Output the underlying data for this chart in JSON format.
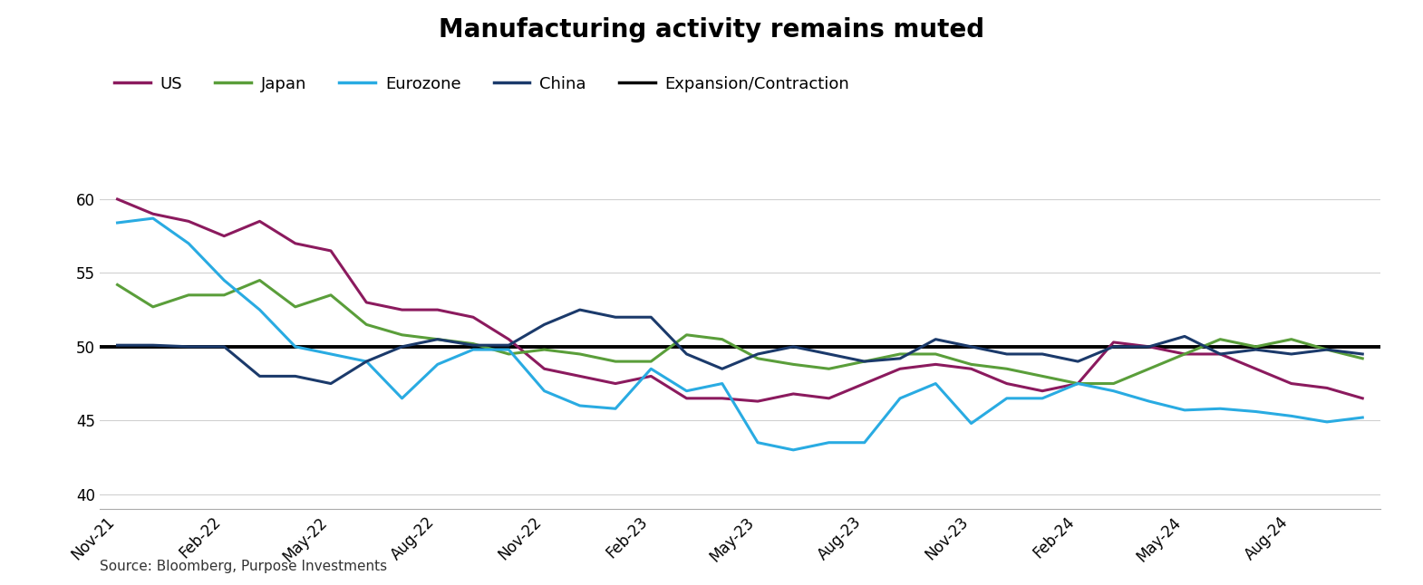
{
  "title": "Manufacturing activity remains muted",
  "source": "Source: Bloomberg, Purpose Investments",
  "x_labels": [
    "Nov-21",
    "Feb-22",
    "May-22",
    "Aug-22",
    "Nov-22",
    "Feb-23",
    "May-23",
    "Aug-23",
    "Nov-23",
    "Feb-24",
    "May-24",
    "Aug-24"
  ],
  "x_tick_positions": [
    0,
    3,
    6,
    9,
    12,
    15,
    18,
    21,
    24,
    27,
    30,
    33
  ],
  "ylim": [
    39,
    62
  ],
  "yticks": [
    40,
    45,
    50,
    55,
    60
  ],
  "expansion_line": 50,
  "series": {
    "US": {
      "color": "#8B1A5E",
      "linewidth": 2.2,
      "data_x": [
        0,
        1,
        2,
        3,
        4,
        5,
        6,
        7,
        8,
        9,
        10,
        11,
        12,
        13,
        14,
        15,
        16,
        17,
        18,
        19,
        20,
        21,
        22,
        23,
        24,
        25,
        26,
        27,
        28,
        29,
        30,
        31,
        32,
        33,
        34,
        35
      ],
      "data_y": [
        60.0,
        59.0,
        58.5,
        57.5,
        58.5,
        57.0,
        56.5,
        53.0,
        52.5,
        52.5,
        52.0,
        50.5,
        48.5,
        48.0,
        47.5,
        48.0,
        46.5,
        46.5,
        46.3,
        46.8,
        46.5,
        47.5,
        48.5,
        48.8,
        48.5,
        47.5,
        47.0,
        47.5,
        50.3,
        50.0,
        49.5,
        49.5,
        48.5,
        47.5,
        47.2,
        46.5
      ]
    },
    "Japan": {
      "color": "#5A9E3A",
      "linewidth": 2.2,
      "data_x": [
        0,
        1,
        2,
        3,
        4,
        5,
        6,
        7,
        8,
        9,
        10,
        11,
        12,
        13,
        14,
        15,
        16,
        17,
        18,
        19,
        20,
        21,
        22,
        23,
        24,
        25,
        26,
        27,
        28,
        29,
        30,
        31,
        32,
        33,
        34,
        35
      ],
      "data_y": [
        54.2,
        52.7,
        53.5,
        53.5,
        54.5,
        52.7,
        53.5,
        51.5,
        50.8,
        50.5,
        50.2,
        49.5,
        49.8,
        49.5,
        49.0,
        49.0,
        50.8,
        50.5,
        49.2,
        48.8,
        48.5,
        49.0,
        49.5,
        49.5,
        48.8,
        48.5,
        48.0,
        47.5,
        47.5,
        48.5,
        49.5,
        50.5,
        50.0,
        50.5,
        49.8,
        49.2
      ]
    },
    "Eurozone": {
      "color": "#29ABE2",
      "linewidth": 2.2,
      "data_x": [
        0,
        1,
        2,
        3,
        4,
        5,
        6,
        7,
        8,
        9,
        10,
        11,
        12,
        13,
        14,
        15,
        16,
        17,
        18,
        19,
        20,
        21,
        22,
        23,
        24,
        25,
        26,
        27,
        28,
        29,
        30,
        31,
        32,
        33,
        34,
        35
      ],
      "data_y": [
        58.4,
        58.7,
        57.0,
        54.5,
        52.5,
        50.0,
        49.5,
        49.0,
        46.5,
        48.8,
        49.8,
        49.8,
        47.0,
        46.0,
        45.8,
        48.5,
        47.0,
        47.5,
        43.5,
        43.0,
        43.5,
        43.5,
        46.5,
        47.5,
        44.8,
        46.5,
        46.5,
        47.5,
        47.0,
        46.3,
        45.7,
        45.8,
        45.6,
        45.3,
        44.9,
        45.2
      ]
    },
    "China": {
      "color": "#1B3A6B",
      "linewidth": 2.2,
      "data_x": [
        0,
        1,
        2,
        3,
        4,
        5,
        6,
        7,
        8,
        9,
        10,
        11,
        12,
        13,
        14,
        15,
        16,
        17,
        18,
        19,
        20,
        21,
        22,
        23,
        24,
        25,
        26,
        27,
        28,
        29,
        30,
        31,
        32,
        33,
        34,
        35
      ],
      "data_y": [
        50.1,
        50.1,
        50.0,
        50.0,
        48.0,
        48.0,
        47.5,
        49.0,
        50.0,
        50.5,
        50.1,
        50.1,
        51.5,
        52.5,
        52.0,
        52.0,
        49.5,
        48.5,
        49.5,
        50.0,
        49.5,
        49.0,
        49.2,
        50.5,
        50.0,
        49.5,
        49.5,
        49.0,
        50.0,
        50.0,
        50.7,
        49.5,
        49.8,
        49.5,
        49.8,
        49.5
      ]
    }
  },
  "legend": [
    {
      "label": "US",
      "color": "#8B1A5E"
    },
    {
      "label": "Japan",
      "color": "#5A9E3A"
    },
    {
      "label": "Eurozone",
      "color": "#29ABE2"
    },
    {
      "label": "China",
      "color": "#1B3A6B"
    },
    {
      "label": "Expansion/Contraction",
      "color": "#000000"
    }
  ],
  "background_color": "#ffffff",
  "grid_color": "#d0d0d0",
  "title_fontsize": 20,
  "legend_fontsize": 13,
  "tick_fontsize": 12,
  "source_fontsize": 11
}
